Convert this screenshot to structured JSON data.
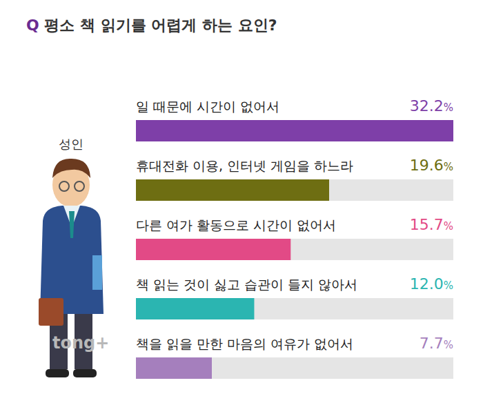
{
  "chart_data": {
    "type": "bar",
    "orientation": "horizontal",
    "title": "Q 평소 책 읽기를 어렵게 하는 요인?",
    "subtitle": "성인",
    "annotations": [
      "tong+"
    ],
    "categories": [
      "일 때문에 시간이 없어서",
      "휴대전화 이용, 인터넷 게임을 하느라",
      "다른 여가 활동으로 시간이 없어서",
      "책 읽는 것이 싫고 습관이 들지 않아서",
      "책을 읽을 만한 마음의 여유가 없어서"
    ],
    "values": [
      32.2,
      19.6,
      15.7,
      12.0,
      7.7
    ],
    "value_labels": [
      "32.2%",
      "19.6%",
      "15.7%",
      "12.0%",
      "7.7%"
    ],
    "colors": [
      "#7e3fa8",
      "#6e6e12",
      "#e24a86",
      "#2bb5b1",
      "#a57fbd"
    ],
    "xlim": [
      0,
      32.2
    ],
    "tick_labels": false,
    "grid": false,
    "data_labels": true
  }
}
